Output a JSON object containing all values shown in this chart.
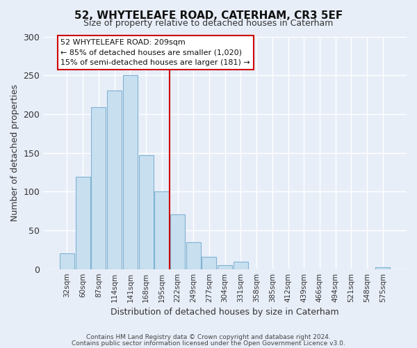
{
  "title": "52, WHYTELEAFE ROAD, CATERHAM, CR3 5EF",
  "subtitle": "Size of property relative to detached houses in Caterham",
  "xlabel": "Distribution of detached houses by size in Caterham",
  "ylabel": "Number of detached properties",
  "bar_labels": [
    "32sqm",
    "60sqm",
    "87sqm",
    "114sqm",
    "141sqm",
    "168sqm",
    "195sqm",
    "222sqm",
    "249sqm",
    "277sqm",
    "304sqm",
    "331sqm",
    "358sqm",
    "385sqm",
    "412sqm",
    "439sqm",
    "466sqm",
    "494sqm",
    "521sqm",
    "548sqm",
    "575sqm"
  ],
  "bar_heights": [
    20,
    119,
    209,
    230,
    250,
    147,
    100,
    71,
    35,
    16,
    5,
    10,
    0,
    0,
    0,
    0,
    0,
    0,
    0,
    0,
    2
  ],
  "bar_color": "#c8dff0",
  "bar_edge_color": "#7fb3d3",
  "vline_x_index": 6,
  "vline_color": "#cc0000",
  "ylim": [
    0,
    300
  ],
  "yticks": [
    0,
    50,
    100,
    150,
    200,
    250,
    300
  ],
  "annotation_title": "52 WHYTELEAFE ROAD: 209sqm",
  "annotation_line1": "← 85% of detached houses are smaller (1,020)",
  "annotation_line2": "15% of semi-detached houses are larger (181) →",
  "annotation_box_facecolor": "#ffffff",
  "annotation_box_edge": "#cc0000",
  "footer1": "Contains HM Land Registry data © Crown copyright and database right 2024.",
  "footer2": "Contains public sector information licensed under the Open Government Licence v3.0.",
  "background_color": "#e8eef8",
  "grid_color": "#ffffff",
  "title_fontsize": 11,
  "subtitle_fontsize": 9
}
